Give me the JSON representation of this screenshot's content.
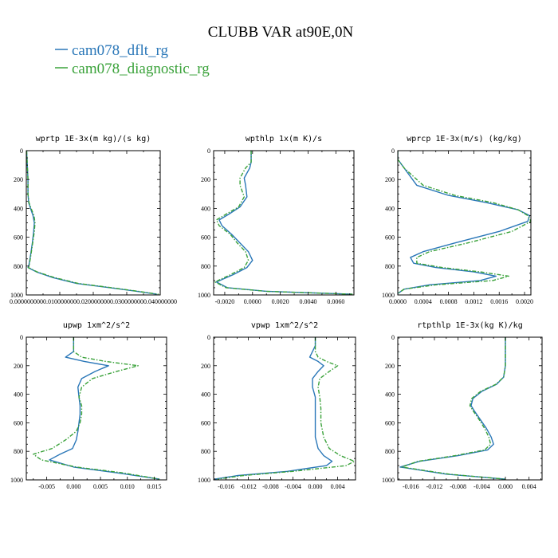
{
  "title": "CLUBB VAR at90E,0N",
  "legend": [
    {
      "label": "cam078_dflt_rg",
      "color": "#2a77b8"
    },
    {
      "label": "cam078_diagnostic_rg",
      "color": "#3aa23a"
    }
  ],
  "chart_data": [
    {
      "type": "line",
      "title": "wprtp  1E-3x(m kg)/(s kg)",
      "xlim": [
        0.0,
        0.04
      ],
      "ylim": [
        0,
        1000
      ],
      "y_inverted": true,
      "xticks": [
        0.0,
        0.01,
        0.02,
        0.03,
        0.04
      ],
      "xtick_labels": [
        "0.000000000",
        "0.010000000",
        "0.020000000",
        "0.030000000",
        "0.040000000"
      ],
      "yticks": [
        0,
        200,
        400,
        600,
        800,
        1000
      ],
      "ytick_labels": [
        "0",
        "200",
        "400",
        "600",
        "800",
        "1000"
      ],
      "series": [
        {
          "name": "cam078_dflt_rg",
          "x": [
            0.0001,
            0.0003,
            0.0005,
            0.0005,
            0.0007,
            0.0014,
            0.002,
            0.0024,
            0.0022,
            0.0018,
            0.0013,
            0.0008,
            0.0005,
            0.003,
            0.008,
            0.015,
            0.025,
            0.033,
            0.039
          ],
          "y": [
            0,
            100,
            200,
            300,
            360,
            410,
            450,
            500,
            560,
            640,
            720,
            790,
            810,
            840,
            880,
            920,
            950,
            975,
            995
          ]
        },
        {
          "name": "cam078_diagnostic_rg",
          "x": [
            0.0001,
            0.0003,
            0.0005,
            0.0005,
            0.0008,
            0.0016,
            0.0023,
            0.0026,
            0.0024,
            0.0019,
            0.0014,
            0.0009,
            0.0006,
            0.0032,
            0.0085,
            0.0155,
            0.0255,
            0.0335,
            0.0395
          ],
          "y": [
            0,
            100,
            200,
            300,
            360,
            410,
            450,
            500,
            560,
            640,
            720,
            790,
            810,
            840,
            880,
            920,
            950,
            975,
            995
          ]
        }
      ]
    },
    {
      "type": "line",
      "title": "wpthlp  1x(m K)/s",
      "xlim": [
        -0.0028,
        0.0073
      ],
      "ylim": [
        0,
        1000
      ],
      "y_inverted": true,
      "xticks": [
        -0.002,
        0.0,
        0.002,
        0.004,
        0.006
      ],
      "xtick_labels": [
        "-0.0020",
        "0.0000",
        "0.0020",
        "0.0040",
        "0.0060"
      ],
      "yticks": [
        0,
        200,
        400,
        600,
        800,
        1000
      ],
      "ytick_labels": [
        "0",
        "200",
        "400",
        "600",
        "800",
        "1000"
      ],
      "series": [
        {
          "name": "cam078_dflt_rg",
          "x": [
            -0.0001,
            -0.0001,
            -0.0002,
            -0.0006,
            -0.0005,
            -0.0004,
            -0.0009,
            -0.0017,
            -0.0024,
            -0.0022,
            -0.0015,
            -0.0009,
            -0.0003,
            0.0,
            -0.0004,
            -0.0014,
            -0.0026,
            -0.0018,
            0.001,
            0.0072
          ],
          "y": [
            0,
            80,
            120,
            190,
            240,
            320,
            390,
            440,
            480,
            520,
            580,
            640,
            700,
            760,
            810,
            860,
            910,
            950,
            975,
            995
          ]
        },
        {
          "name": "cam078_diagnostic_rg",
          "x": [
            -0.0001,
            -0.0001,
            -0.0005,
            -0.0009,
            -0.0009,
            -0.0006,
            -0.001,
            -0.0019,
            -0.0026,
            -0.0024,
            -0.0016,
            -0.0011,
            -0.0005,
            -0.0003,
            -0.0006,
            -0.0016,
            -0.0027,
            -0.0019,
            0.001,
            0.0072
          ],
          "y": [
            0,
            80,
            120,
            190,
            240,
            320,
            390,
            440,
            480,
            520,
            580,
            640,
            700,
            760,
            810,
            860,
            910,
            950,
            975,
            995
          ]
        }
      ]
    },
    {
      "type": "line",
      "title": "wprcp  1E-3x(m/s) (kg/kg)",
      "xlim": [
        0.0,
        0.0021
      ],
      "ylim": [
        0,
        1000
      ],
      "y_inverted": true,
      "xticks": [
        0.0,
        0.0004,
        0.0008,
        0.0012,
        0.0016,
        0.002
      ],
      "xtick_labels": [
        "0.0000",
        "0.0004",
        "0.0008",
        "0.0012",
        "0.0016",
        "0.0020"
      ],
      "yticks": [
        0,
        200,
        400,
        600,
        800,
        1000
      ],
      "ytick_labels": [
        "0",
        "200",
        "400",
        "600",
        "800",
        "1000"
      ],
      "series": [
        {
          "name": "cam078_dflt_rg",
          "x": [
            0.0,
            0.0,
            0.0001,
            0.0003,
            0.0008,
            0.0014,
            0.0019,
            0.00208,
            0.00205,
            0.0016,
            0.0009,
            0.0004,
            0.0002,
            0.00025,
            0.0006,
            0.0012,
            0.00155,
            0.0013,
            0.0005,
            0.0001,
            0.0
          ],
          "y": [
            0,
            60,
            120,
            240,
            310,
            360,
            410,
            450,
            490,
            560,
            640,
            700,
            740,
            780,
            810,
            840,
            870,
            900,
            930,
            960,
            990
          ]
        },
        {
          "name": "cam078_diagnostic_rg",
          "x": [
            0.0,
            0.0,
            0.0001,
            0.0004,
            0.0009,
            0.0015,
            0.0019,
            0.00205,
            0.0021,
            0.0018,
            0.0011,
            0.0005,
            0.0003,
            0.0003,
            0.0007,
            0.0013,
            0.00175,
            0.0015,
            0.0006,
            0.0001,
            0.0
          ],
          "y": [
            0,
            60,
            120,
            240,
            310,
            360,
            410,
            450,
            490,
            560,
            640,
            700,
            740,
            780,
            810,
            840,
            870,
            900,
            930,
            960,
            990
          ]
        }
      ]
    },
    {
      "type": "line",
      "title": "upwp  1xm^2/s^2",
      "xlim": [
        -0.0088,
        0.0173
      ],
      "ylim": [
        0,
        1000
      ],
      "y_inverted": true,
      "xticks": [
        -0.005,
        0.0,
        0.005,
        0.01,
        0.015
      ],
      "xtick_labels": [
        "-0.005",
        "0.000",
        "0.005",
        "0.010",
        "0.015"
      ],
      "yticks": [
        0,
        200,
        400,
        600,
        800,
        1000
      ],
      "ytick_labels": [
        "0",
        "200",
        "400",
        "600",
        "800",
        "1000"
      ],
      "series": [
        {
          "name": "cam078_dflt_rg",
          "x": [
            0.0,
            0.0,
            0.0,
            -0.0015,
            0.002,
            0.0065,
            0.004,
            0.0015,
            0.0008,
            0.001,
            0.0012,
            0.0012,
            0.001,
            0.0008,
            0.0005,
            -0.0002,
            -0.0025,
            -0.0045,
            0.0,
            0.008,
            0.016
          ],
          "y": [
            0,
            60,
            100,
            140,
            170,
            200,
            240,
            290,
            350,
            420,
            480,
            540,
            600,
            660,
            720,
            780,
            820,
            860,
            910,
            950,
            995
          ]
        },
        {
          "name": "cam078_diagnostic_rg",
          "x": [
            0.0,
            0.0,
            0.0,
            0.0015,
            0.006,
            0.012,
            0.008,
            0.0035,
            0.0015,
            0.001,
            0.0015,
            0.0015,
            0.0012,
            0.0005,
            -0.0015,
            -0.004,
            -0.0075,
            -0.006,
            0.0005,
            0.009,
            0.016
          ],
          "y": [
            0,
            60,
            100,
            140,
            170,
            200,
            240,
            290,
            350,
            420,
            480,
            540,
            600,
            660,
            720,
            780,
            820,
            860,
            910,
            950,
            995
          ]
        }
      ]
    },
    {
      "type": "line",
      "title": "vpwp  1xm^2/s^2",
      "xlim": [
        -0.0182,
        0.0072
      ],
      "ylim": [
        0,
        1000
      ],
      "y_inverted": true,
      "xticks": [
        -0.016,
        -0.012,
        -0.008,
        -0.004,
        0.0,
        0.004
      ],
      "xtick_labels": [
        "-0.016",
        "-0.012",
        "-0.008",
        "-0.004",
        "0.000",
        "0.004"
      ],
      "yticks": [
        0,
        200,
        400,
        600,
        800,
        1000
      ],
      "ytick_labels": [
        "0",
        "200",
        "400",
        "600",
        "800",
        "1000"
      ],
      "series": [
        {
          "name": "cam078_dflt_rg",
          "x": [
            0.0,
            0.0,
            -0.0005,
            -0.001,
            0.0005,
            0.0015,
            0.0005,
            -0.0005,
            -0.0005,
            0.0,
            0.0,
            0.0,
            0.0,
            0.0005,
            0.0015,
            0.003,
            0.002,
            -0.005,
            -0.014,
            -0.018
          ],
          "y": [
            0,
            60,
            100,
            140,
            170,
            200,
            240,
            290,
            350,
            420,
            500,
            600,
            700,
            780,
            830,
            870,
            900,
            940,
            970,
            995
          ]
        },
        {
          "name": "cam078_diagnostic_rg",
          "x": [
            0.0,
            0.0,
            0.0,
            0.0005,
            0.002,
            0.004,
            0.0025,
            0.0008,
            0.0005,
            0.0008,
            0.001,
            0.001,
            0.0015,
            0.0025,
            0.0045,
            0.007,
            0.0055,
            -0.004,
            -0.013,
            -0.0175
          ],
          "y": [
            0,
            60,
            100,
            140,
            170,
            200,
            240,
            290,
            350,
            420,
            500,
            600,
            700,
            780,
            830,
            870,
            900,
            940,
            970,
            995
          ]
        }
      ]
    },
    {
      "type": "line",
      "title": "rtpthlp  1E-3x(kg K)/kg",
      "xlim": [
        -0.0182,
        0.0062
      ],
      "ylim": [
        0,
        1000
      ],
      "y_inverted": true,
      "xticks": [
        -0.016,
        -0.012,
        -0.008,
        -0.004,
        0.0,
        0.004
      ],
      "xtick_labels": [
        "-0.016",
        "-0.012",
        "-0.008",
        "-0.004",
        "0.000",
        "0.004"
      ],
      "yticks": [
        0,
        200,
        400,
        600,
        800,
        1000
      ],
      "ytick_labels": [
        "0",
        "200",
        "400",
        "600",
        "800",
        "1000"
      ],
      "series": [
        {
          "name": "cam078_dflt_rg",
          "x": [
            0.0,
            0.0,
            0.0,
            -0.0003,
            -0.0015,
            -0.004,
            -0.0055,
            -0.0058,
            -0.0052,
            -0.0042,
            -0.0032,
            -0.0024,
            -0.002,
            -0.003,
            -0.008,
            -0.0145,
            -0.0178,
            -0.01,
            0.0
          ],
          "y": [
            0,
            100,
            200,
            280,
            330,
            380,
            430,
            480,
            520,
            580,
            640,
            700,
            750,
            790,
            830,
            870,
            910,
            960,
            995
          ]
        },
        {
          "name": "cam078_diagnostic_rg",
          "x": [
            0.0,
            0.0,
            0.0,
            -0.0003,
            -0.0016,
            -0.0042,
            -0.0057,
            -0.006,
            -0.0054,
            -0.0044,
            -0.0035,
            -0.0028,
            -0.0025,
            -0.0035,
            -0.0085,
            -0.0148,
            -0.0175,
            -0.0095,
            0.0
          ],
          "y": [
            0,
            100,
            200,
            280,
            330,
            380,
            430,
            480,
            520,
            580,
            640,
            700,
            750,
            790,
            830,
            870,
            910,
            960,
            995
          ]
        }
      ]
    }
  ]
}
